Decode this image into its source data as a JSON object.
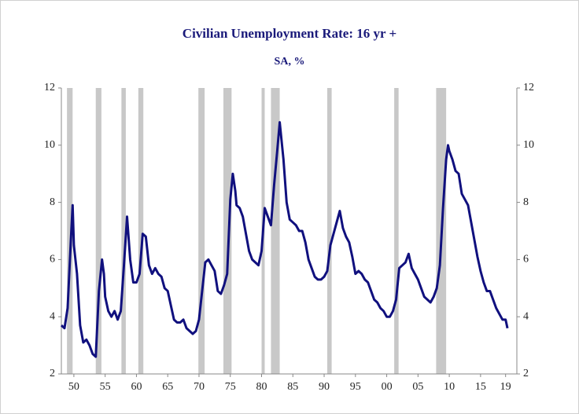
{
  "chart_data": {
    "type": "line",
    "title": "Civilian Unemployment Rate: 16 yr +",
    "subtitle": "SA, %",
    "x": [
      1948.0,
      1948.5,
      1949.0,
      1949.5,
      1949.8,
      1950.0,
      1950.5,
      1951.0,
      1951.5,
      1952.0,
      1952.5,
      1953.0,
      1953.5,
      1954.0,
      1954.5,
      1954.8,
      1955.0,
      1955.5,
      1956.0,
      1956.5,
      1957.0,
      1957.5,
      1958.0,
      1958.5,
      1959.0,
      1959.5,
      1960.0,
      1960.5,
      1961.0,
      1961.5,
      1962.0,
      1962.5,
      1963.0,
      1963.5,
      1964.0,
      1964.5,
      1965.0,
      1965.5,
      1966.0,
      1966.5,
      1967.0,
      1967.5,
      1968.0,
      1968.5,
      1969.0,
      1969.5,
      1970.0,
      1970.5,
      1971.0,
      1971.5,
      1972.0,
      1972.5,
      1973.0,
      1973.5,
      1974.0,
      1974.5,
      1975.0,
      1975.4,
      1975.8,
      1976.0,
      1976.5,
      1977.0,
      1977.5,
      1978.0,
      1978.5,
      1979.0,
      1979.5,
      1980.0,
      1980.5,
      1981.0,
      1981.5,
      1982.0,
      1982.5,
      1982.9,
      1983.5,
      1984.0,
      1984.5,
      1985.0,
      1985.5,
      1986.0,
      1986.5,
      1987.0,
      1987.5,
      1988.0,
      1988.5,
      1989.0,
      1989.5,
      1990.0,
      1990.5,
      1991.0,
      1991.5,
      1992.0,
      1992.5,
      1993.0,
      1993.5,
      1994.0,
      1994.5,
      1995.0,
      1995.5,
      1996.0,
      1996.5,
      1997.0,
      1997.5,
      1998.0,
      1998.5,
      1999.0,
      1999.5,
      2000.0,
      2000.5,
      2001.0,
      2001.5,
      2002.0,
      2002.5,
      2003.0,
      2003.5,
      2004.0,
      2004.5,
      2005.0,
      2005.5,
      2006.0,
      2006.5,
      2007.0,
      2007.5,
      2008.0,
      2008.5,
      2009.0,
      2009.5,
      2009.8,
      2010.0,
      2010.5,
      2011.0,
      2011.5,
      2012.0,
      2012.5,
      2013.0,
      2013.5,
      2014.0,
      2014.5,
      2015.0,
      2015.5,
      2016.0,
      2016.5,
      2017.0,
      2017.5,
      2018.0,
      2018.5,
      2019.0,
      2019.3
    ],
    "series": [
      {
        "color": "#10107e",
        "values": [
          3.7,
          3.6,
          4.3,
          6.6,
          7.9,
          6.5,
          5.5,
          3.7,
          3.1,
          3.2,
          3.0,
          2.7,
          2.6,
          4.9,
          6.0,
          5.5,
          4.7,
          4.2,
          4.0,
          4.2,
          3.9,
          4.2,
          5.8,
          7.5,
          6.0,
          5.2,
          5.2,
          5.5,
          6.9,
          6.8,
          5.8,
          5.5,
          5.7,
          5.5,
          5.4,
          5.0,
          4.9,
          4.4,
          3.9,
          3.8,
          3.8,
          3.9,
          3.6,
          3.5,
          3.4,
          3.5,
          3.9,
          4.9,
          5.9,
          6.0,
          5.8,
          5.6,
          4.9,
          4.8,
          5.1,
          5.5,
          8.1,
          9.0,
          8.4,
          7.9,
          7.8,
          7.5,
          6.9,
          6.3,
          6.0,
          5.9,
          5.8,
          6.3,
          7.8,
          7.5,
          7.2,
          8.6,
          9.8,
          10.8,
          9.5,
          8.0,
          7.4,
          7.3,
          7.2,
          7.0,
          7.0,
          6.6,
          6.0,
          5.7,
          5.4,
          5.3,
          5.3,
          5.4,
          5.6,
          6.5,
          6.9,
          7.3,
          7.7,
          7.1,
          6.8,
          6.6,
          6.1,
          5.5,
          5.6,
          5.5,
          5.3,
          5.2,
          4.9,
          4.6,
          4.5,
          4.3,
          4.2,
          4.0,
          4.0,
          4.2,
          4.6,
          5.7,
          5.8,
          5.9,
          6.2,
          5.7,
          5.5,
          5.3,
          5.0,
          4.7,
          4.6,
          4.5,
          4.7,
          5.0,
          5.8,
          7.8,
          9.5,
          10.0,
          9.8,
          9.5,
          9.1,
          9.0,
          8.3,
          8.1,
          7.9,
          7.3,
          6.7,
          6.1,
          5.6,
          5.2,
          4.9,
          4.9,
          4.6,
          4.3,
          4.1,
          3.9,
          3.9,
          3.6
        ]
      }
    ],
    "recessions": [
      [
        1948.9,
        1949.8
      ],
      [
        1953.5,
        1954.4
      ],
      [
        1957.6,
        1958.3
      ],
      [
        1960.3,
        1961.1
      ],
      [
        1969.9,
        1970.9
      ],
      [
        1973.9,
        1975.2
      ],
      [
        1980.0,
        1980.5
      ],
      [
        1981.5,
        1982.9
      ],
      [
        1990.5,
        1991.2
      ],
      [
        2001.2,
        2001.9
      ],
      [
        2007.9,
        2009.5
      ]
    ],
    "recession_color": "#c8c8c8",
    "xlim": [
      1948,
      2020.8
    ],
    "xticks": [
      {
        "value": 1950,
        "label": "50"
      },
      {
        "value": 1955,
        "label": "55"
      },
      {
        "value": 1960,
        "label": "60"
      },
      {
        "value": 1965,
        "label": "65"
      },
      {
        "value": 1970,
        "label": "70"
      },
      {
        "value": 1975,
        "label": "75"
      },
      {
        "value": 1980,
        "label": "80"
      },
      {
        "value": 1985,
        "label": "85"
      },
      {
        "value": 1990,
        "label": "90"
      },
      {
        "value": 1995,
        "label": "95"
      },
      {
        "value": 2000,
        "label": "00"
      },
      {
        "value": 2005,
        "label": "05"
      },
      {
        "value": 2010,
        "label": "10"
      },
      {
        "value": 2015,
        "label": "15"
      },
      {
        "value": 2019,
        "label": "19"
      }
    ],
    "ylim": [
      2,
      12
    ],
    "yticks": [
      2,
      4,
      6,
      8,
      10,
      12
    ],
    "grid": false
  }
}
